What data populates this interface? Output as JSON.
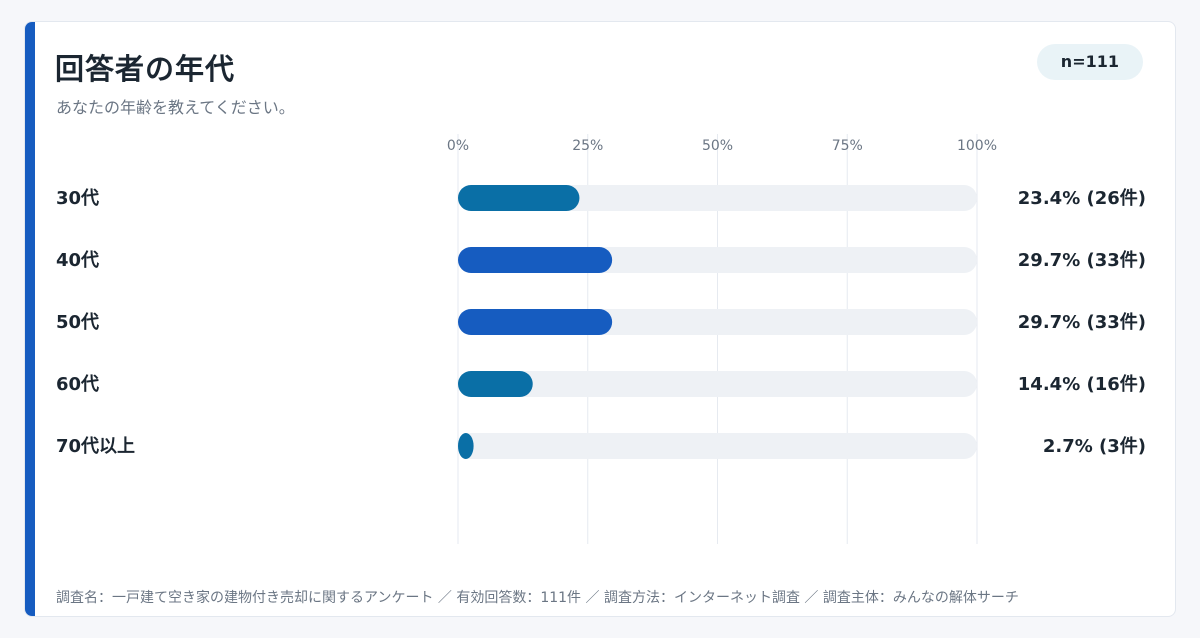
{
  "header": {
    "title": "回答者の年代",
    "subtitle": "あなたの年齢を教えてください。",
    "badge": "n=111"
  },
  "chart_data": {
    "type": "bar",
    "orientation": "horizontal",
    "categories": [
      "30代",
      "40代",
      "50代",
      "60代",
      "70代以上"
    ],
    "values": [
      23.4,
      29.7,
      29.7,
      14.4,
      2.7
    ],
    "counts": [
      26,
      33,
      33,
      16,
      3
    ],
    "value_labels": [
      "23.4% (26件)",
      "29.7% (33件)",
      "29.7% (33件)",
      "14.4% (16件)",
      "2.7% (3件)"
    ],
    "xlim": [
      0,
      100
    ],
    "x_ticks": [
      0,
      25,
      50,
      75,
      100
    ],
    "x_tick_labels": [
      "0%",
      "25%",
      "50%",
      "75%",
      "100%"
    ],
    "grid": true,
    "colors": {
      "bar_teal": "#0a6fa6",
      "bar_blue": "#165cc0",
      "track": "#eef1f5",
      "grid": "#e6eaf0",
      "accent": "#165cc0"
    },
    "bar_colors": [
      "#0a6fa6",
      "#165cc0",
      "#165cc0",
      "#0a6fa6",
      "#0a6fa6"
    ]
  },
  "footer": {
    "text": "調査名：一戸建て空き家の建物付き売却に関するアンケート ／ 有効回答数：111件 ／ 調査方法：インターネット調査 ／ 調査主体：みんなの解体サーチ"
  }
}
